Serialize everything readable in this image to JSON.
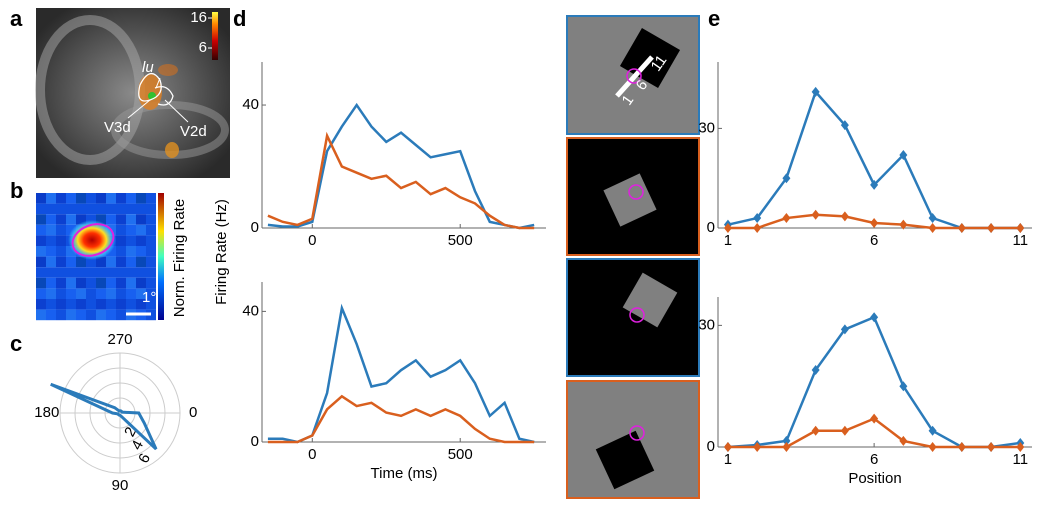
{
  "panel_labels": [
    "a",
    "b",
    "c",
    "d",
    "e"
  ],
  "panel_a": {
    "labels": [
      "lu",
      "V3d",
      "V2d"
    ],
    "colorbar_lim": [
      2,
      18
    ],
    "colorbar_ticks": [
      16,
      6
    ]
  },
  "panel_b": {
    "colorbar_label": "Norm. Firing Rate",
    "scale_bar": "1°"
  },
  "stimuli": {
    "position_labels": [
      "1",
      "6",
      "11"
    ]
  },
  "chart_data": [
    {
      "type": "polar",
      "theta": [
        0,
        22.5,
        45,
        67.5,
        90,
        112.5,
        135,
        157.5,
        180,
        202.5,
        225,
        247.5,
        270,
        292.5,
        315,
        337.5
      ],
      "values": [
        2.5,
        3.5,
        6.8,
        0.5,
        0.3,
        0.3,
        0.3,
        0.3,
        1,
        10,
        1,
        0.3,
        0.3,
        0.3,
        0.3,
        0.3
      ],
      "color": "#2b7bba",
      "rlim": [
        0,
        8
      ],
      "rticks": [
        2,
        4,
        6
      ],
      "thetaticks": [
        0,
        90,
        180,
        270
      ],
      "grid": true
    },
    {
      "type": "line",
      "ylabel": "Firing Rate (Hz)",
      "x": [
        -150,
        -100,
        -50,
        0,
        50,
        100,
        150,
        200,
        250,
        300,
        350,
        400,
        450,
        500,
        550,
        600,
        650,
        700,
        750
      ],
      "series": [
        {
          "color": "#2b7bba",
          "values": [
            1,
            0.5,
            0.5,
            2,
            25,
            33,
            40,
            33,
            28,
            31,
            27,
            23,
            24,
            25,
            12,
            2,
            1,
            0,
            1
          ]
        },
        {
          "color": "#d95f1e",
          "values": [
            4,
            2,
            1,
            3,
            30,
            20,
            18,
            16,
            17,
            13,
            15,
            11,
            13,
            10,
            8,
            4,
            1,
            0,
            0
          ]
        }
      ],
      "xlim": [
        -170,
        790
      ],
      "ylim": [
        0,
        54
      ],
      "xticks": [
        0,
        500
      ],
      "yticks": [
        0,
        40
      ]
    },
    {
      "type": "line",
      "xlabel": "Time (ms)",
      "x": [
        -150,
        -100,
        -50,
        0,
        50,
        100,
        150,
        200,
        250,
        300,
        350,
        400,
        450,
        500,
        550,
        600,
        650,
        700,
        750
      ],
      "series": [
        {
          "color": "#2b7bba",
          "values": [
            1,
            1,
            0,
            2,
            15,
            41,
            30,
            17,
            18,
            22,
            25,
            20,
            22,
            25,
            18,
            8,
            12,
            1,
            0
          ]
        },
        {
          "color": "#d95f1e",
          "values": [
            0,
            0,
            0,
            2,
            10,
            14,
            11,
            12,
            9,
            8,
            10,
            8,
            10,
            8,
            4,
            1,
            0,
            0,
            0
          ]
        }
      ],
      "xlim": [
        -170,
        790
      ],
      "ylim": [
        0,
        49
      ],
      "xticks": [
        0,
        500
      ],
      "yticks": [
        0,
        40
      ]
    },
    {
      "type": "line",
      "marker": "diamond",
      "x": [
        1,
        2,
        3,
        4,
        5,
        6,
        7,
        8,
        9,
        10,
        11
      ],
      "series": [
        {
          "color": "#2b7bba",
          "values": [
            1,
            3,
            15,
            41,
            31,
            13,
            22,
            3,
            0,
            0,
            0
          ]
        },
        {
          "color": "#d95f1e",
          "values": [
            0,
            0,
            3,
            4,
            3.5,
            1.5,
            1,
            0,
            0,
            0,
            0
          ]
        }
      ],
      "xlim": [
        0.66,
        11.4
      ],
      "ylim": [
        0,
        50
      ],
      "xticks": [
        1,
        6,
        11
      ],
      "yticks": [
        0,
        30
      ]
    },
    {
      "type": "line",
      "marker": "diamond",
      "xlabel": "Position",
      "x": [
        1,
        2,
        3,
        4,
        5,
        6,
        7,
        8,
        9,
        10,
        11
      ],
      "series": [
        {
          "color": "#2b7bba",
          "values": [
            0,
            0.5,
            1.5,
            19,
            29,
            32,
            15,
            4,
            0,
            0,
            1
          ]
        },
        {
          "color": "#d95f1e",
          "values": [
            0,
            0,
            0,
            4,
            4,
            7,
            1.5,
            0,
            0,
            0,
            0
          ]
        }
      ],
      "xlim": [
        0.66,
        11.4
      ],
      "ylim": [
        0,
        37
      ],
      "xticks": [
        1,
        6,
        11
      ],
      "yticks": [
        0,
        30
      ]
    }
  ]
}
